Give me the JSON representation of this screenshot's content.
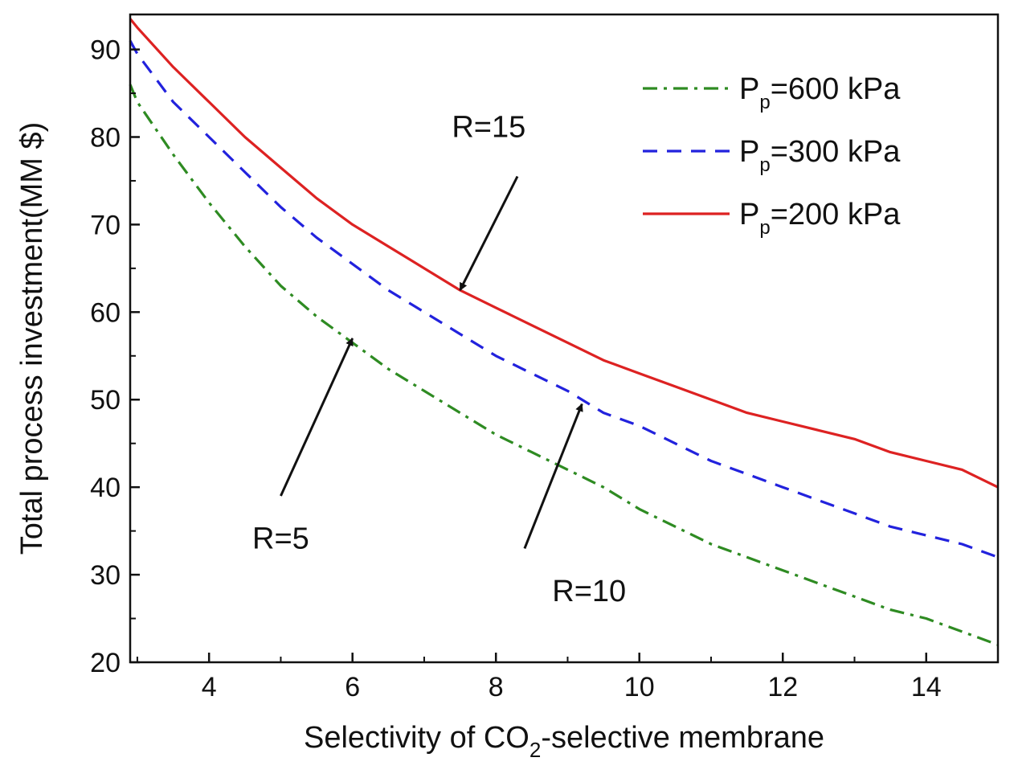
{
  "chart_data": {
    "type": "line",
    "title": "",
    "xlabel": {
      "prefix": "Selectivity of CO",
      "subscript": "2",
      "suffix": "-selective membrane"
    },
    "ylabel": "Total process investment(MM $)",
    "xlim": [
      2.9,
      15
    ],
    "ylim": [
      20,
      94
    ],
    "xticks": [
      4,
      6,
      8,
      10,
      12,
      14
    ],
    "yticks": [
      20,
      30,
      40,
      50,
      60,
      70,
      80,
      90
    ],
    "legend_position": "top-right",
    "series": [
      {
        "name": "P_p=600 kPa",
        "legend": {
          "main": "P",
          "sub": "p",
          "rest": "=600 kPa"
        },
        "color": "#2e8b22",
        "style": "dashdot",
        "x": [
          2.9,
          3,
          3.5,
          4,
          4.5,
          5,
          5.5,
          6,
          6.5,
          7,
          7.5,
          8,
          8.5,
          9,
          9.5,
          10,
          10.5,
          11,
          11.5,
          12,
          12.5,
          13,
          13.5,
          14,
          14.5,
          15
        ],
        "y": [
          86,
          84,
          78,
          72.5,
          67.5,
          63,
          59.5,
          56.5,
          53.5,
          51,
          48.5,
          46,
          44,
          42,
          40,
          37.5,
          35.5,
          33.5,
          32,
          30.5,
          29,
          27.5,
          26,
          25,
          23.5,
          22
        ]
      },
      {
        "name": "P_p=300 kPa",
        "legend": {
          "main": "P",
          "sub": "p",
          "rest": "=300 kPa"
        },
        "color": "#2222dd",
        "style": "dashed",
        "x": [
          2.9,
          3,
          3.5,
          4,
          4.5,
          5,
          5.5,
          6,
          6.5,
          7,
          7.5,
          8,
          8.5,
          9,
          9.5,
          10,
          10.5,
          11,
          11.5,
          12,
          12.5,
          13,
          13.5,
          14,
          14.5,
          15
        ],
        "y": [
          91,
          89.5,
          84,
          80,
          76,
          72,
          68.5,
          65.5,
          62.5,
          60,
          57.5,
          55,
          53,
          51,
          48.5,
          47,
          45,
          43,
          41.5,
          40,
          38.5,
          37,
          35.5,
          34.5,
          33.5,
          32
        ]
      },
      {
        "name": "P_p=200 kPa",
        "legend": {
          "main": "P",
          "sub": "p",
          "rest": "=200 kPa"
        },
        "color": "#dd2222",
        "style": "solid",
        "x": [
          2.9,
          3,
          3.5,
          4,
          4.5,
          5,
          5.5,
          6,
          6.5,
          7,
          7.5,
          8,
          8.5,
          9,
          9.5,
          10,
          10.5,
          11,
          11.5,
          12,
          12.5,
          13,
          13.5,
          14,
          14.5,
          15
        ],
        "y": [
          93.5,
          92.5,
          88,
          84,
          80,
          76.5,
          73,
          70,
          67.5,
          65,
          62.5,
          60.5,
          58.5,
          56.5,
          54.5,
          53,
          51.5,
          50,
          48.5,
          47.5,
          46.5,
          45.5,
          44,
          43,
          42,
          40
        ]
      }
    ],
    "annotations": [
      {
        "text": "R=15",
        "text_at": [
          7.9,
          80
        ],
        "arrow_from": [
          8.3,
          75.5
        ],
        "arrow_to": [
          7.5,
          62.5
        ]
      },
      {
        "text": "R=10",
        "text_at": [
          9.3,
          27
        ],
        "arrow_from": [
          8.4,
          33
        ],
        "arrow_to": [
          9.2,
          49.5
        ]
      },
      {
        "text": "R=5",
        "text_at": [
          5.0,
          33
        ],
        "arrow_from": [
          5.0,
          39
        ],
        "arrow_to": [
          6.0,
          57
        ]
      }
    ]
  }
}
